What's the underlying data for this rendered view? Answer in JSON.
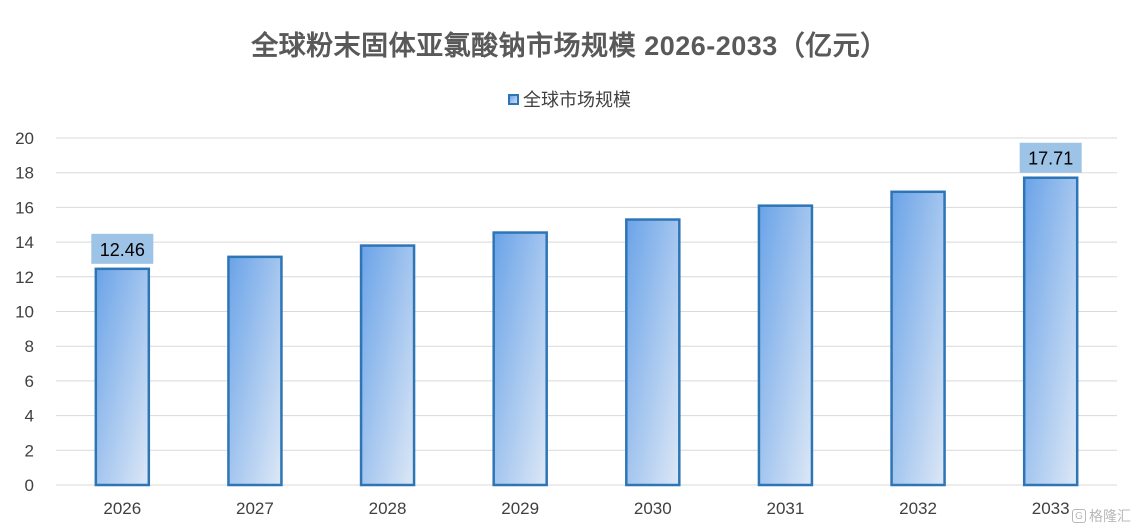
{
  "chart_data": {
    "type": "bar",
    "title": "全球粉末固体亚氯酸钠市场规模 2026-2033（亿元）",
    "categories": [
      "2026",
      "2027",
      "2028",
      "2029",
      "2030",
      "2031",
      "2032",
      "2033"
    ],
    "series": [
      {
        "name": "全球市场规模",
        "values": [
          12.46,
          13.15,
          13.8,
          14.55,
          15.3,
          16.1,
          16.9,
          17.71
        ]
      }
    ],
    "data_labels": [
      {
        "category": "2026",
        "text": "12.46"
      },
      {
        "category": "2033",
        "text": "17.71"
      }
    ],
    "ylim": [
      0,
      20
    ],
    "yticks": [
      0,
      2,
      4,
      6,
      8,
      10,
      12,
      14,
      16,
      18,
      20
    ],
    "grid": true,
    "legend_position": "top-center",
    "colors": {
      "bar_stroke": "#2e75b6",
      "bar_fill_start": "#6aa3e8",
      "bar_fill_end": "#dde8f6",
      "label_bg": "#9dc3e6",
      "grid": "#d9d9d9",
      "tick_text": "#404040"
    }
  },
  "watermark": {
    "icon": "g-logo-icon",
    "text": "格隆汇"
  }
}
